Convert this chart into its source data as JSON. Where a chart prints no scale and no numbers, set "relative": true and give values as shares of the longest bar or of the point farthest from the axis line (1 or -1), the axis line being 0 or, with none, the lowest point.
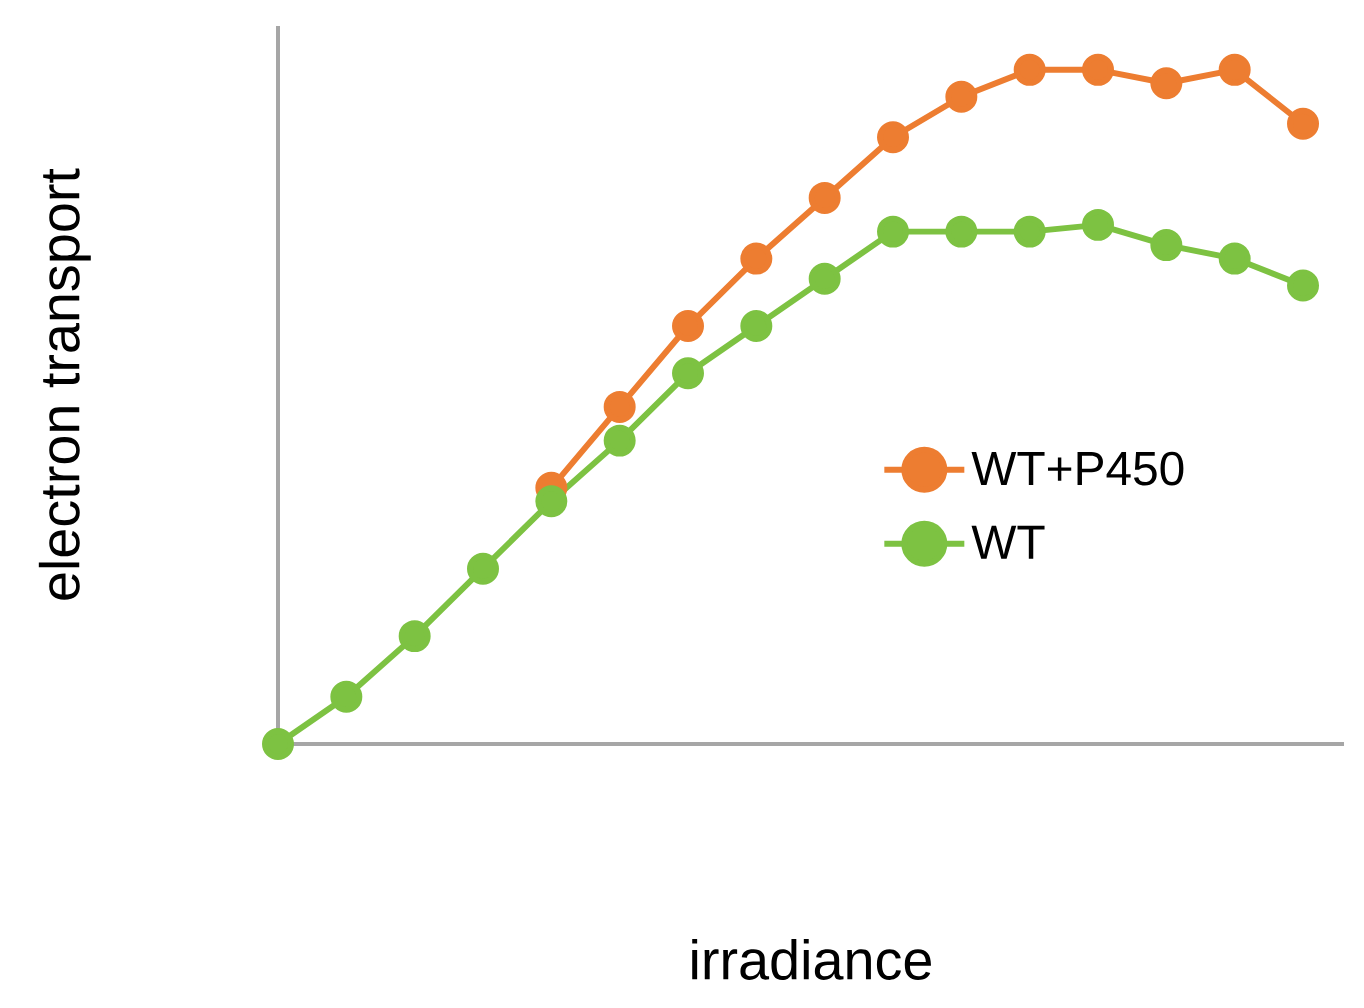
{
  "chart_data": {
    "type": "line",
    "relative": true,
    "xlabel": "irradiance",
    "ylabel": "electron transport",
    "categories": [
      null,
      null,
      null,
      null,
      null,
      null,
      null,
      null,
      null,
      null,
      null,
      null,
      null,
      null,
      null,
      null
    ],
    "series": [
      {
        "name": "WT+P450",
        "color": "#ed7d31",
        "values": [
          null,
          null,
          null,
          null,
          0.38,
          0.5,
          0.62,
          0.72,
          0.81,
          0.9,
          0.96,
          1.0,
          1.0,
          0.98,
          1.0,
          0.92
        ]
      },
      {
        "name": "WT",
        "color": "#7dc242",
        "values": [
          0,
          0.07,
          0.16,
          0.26,
          0.36,
          0.45,
          0.55,
          0.62,
          0.69,
          0.76,
          0.76,
          0.76,
          0.77,
          0.74,
          0.72,
          0.68
        ]
      }
    ],
    "marker": "circle",
    "legend": "right"
  }
}
